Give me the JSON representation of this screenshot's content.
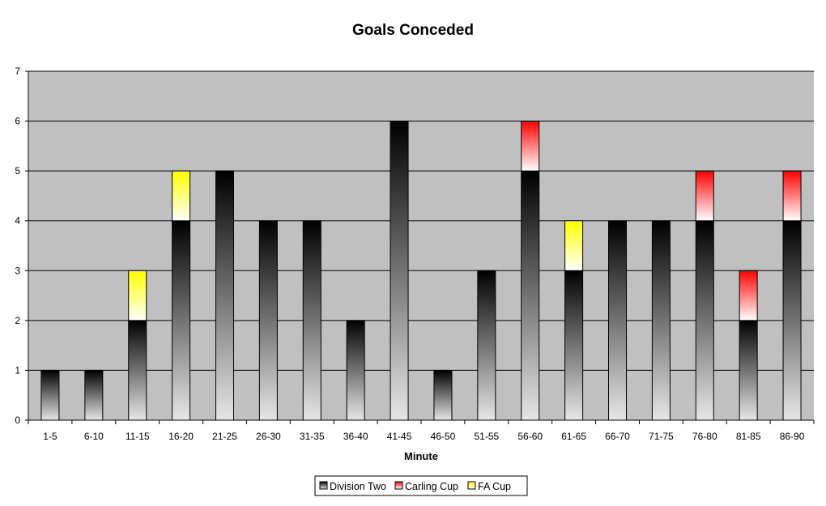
{
  "chart_data": {
    "type": "bar",
    "stacked": true,
    "title": "Goals Conceded",
    "xlabel": "Minute",
    "ylabel": "",
    "ylim": [
      0,
      7
    ],
    "yticks": [
      "0",
      "1",
      "2",
      "3",
      "4",
      "5",
      "6",
      "7"
    ],
    "grid": true,
    "legend_position": "bottom",
    "plot_background": "#c0c0c0",
    "categories": [
      "1-5",
      "6-10",
      "11-15",
      "16-20",
      "21-25",
      "26-30",
      "31-35",
      "36-40",
      "41-45",
      "46-50",
      "51-55",
      "56-60",
      "61-65",
      "66-70",
      "71-75",
      "76-80",
      "81-85",
      "86-90"
    ],
    "series": [
      {
        "name": "Division Two",
        "color": "#000000",
        "values": [
          1,
          1,
          2,
          4,
          5,
          4,
          4,
          2,
          6,
          1,
          3,
          5,
          3,
          4,
          4,
          4,
          2,
          4
        ]
      },
      {
        "name": "Carling Cup",
        "color": "#ff0000",
        "values": [
          0,
          0,
          0,
          0,
          0,
          0,
          0,
          0,
          0,
          0,
          0,
          1,
          0,
          0,
          0,
          1,
          1,
          1
        ]
      },
      {
        "name": "FA Cup",
        "color": "#ffff00",
        "values": [
          0,
          0,
          1,
          1,
          0,
          0,
          0,
          0,
          0,
          0,
          0,
          0,
          1,
          0,
          0,
          0,
          0,
          0
        ]
      }
    ]
  }
}
